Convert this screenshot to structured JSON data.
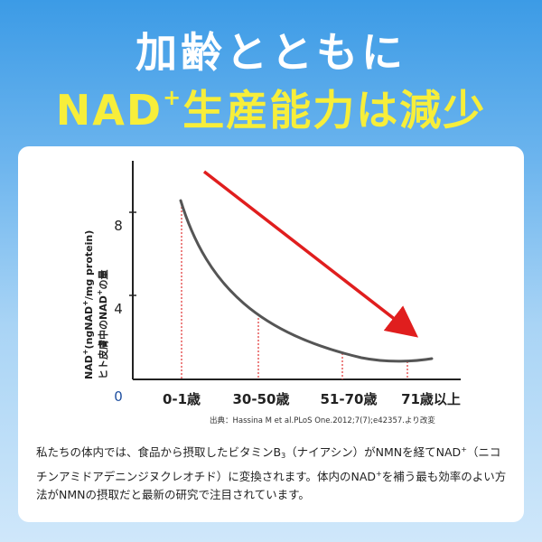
{
  "header": {
    "line1": "加齢とともに",
    "line2_prefix": "NAD",
    "line2_sup": "+",
    "line2_suffix": "生産能力は減少"
  },
  "chart_data": {
    "type": "line",
    "ylabel_line1_parts": [
      "NAD",
      "+",
      "(ngNAD",
      "+",
      "/mg protein)"
    ],
    "ylabel_line2_parts": [
      "ヒト皮膚中のNAD",
      "+",
      "の量"
    ],
    "y_ticks": [
      "0",
      "4",
      "8"
    ],
    "categories": [
      "0-1歳",
      "30-50歳",
      "51-70歳",
      "71歳以上"
    ],
    "trend": "decreasing",
    "colors": {
      "curve": "#555555",
      "trend_arrow": "#e01e1e",
      "guide_lines": "#e03030",
      "axis": "#222222"
    }
  },
  "source": "出典：Hassina M et al.PLoS One.2012;7(7);e42357.より改変",
  "description": {
    "p1": "私たちの体内では、食品から摂取したビタミンB",
    "p1_sub": "3",
    "p2": "（ナイアシン）がNMNを経てNAD",
    "p2_sup": "+",
    "p3": "（ニコチンアミドアデニンジヌクレオチド）に変換されます。体内のNAD",
    "p3_sup": "+",
    "p4": "を補う最も効率のよい方法がNMNの摂取だと最新の研究で注目されています。"
  }
}
